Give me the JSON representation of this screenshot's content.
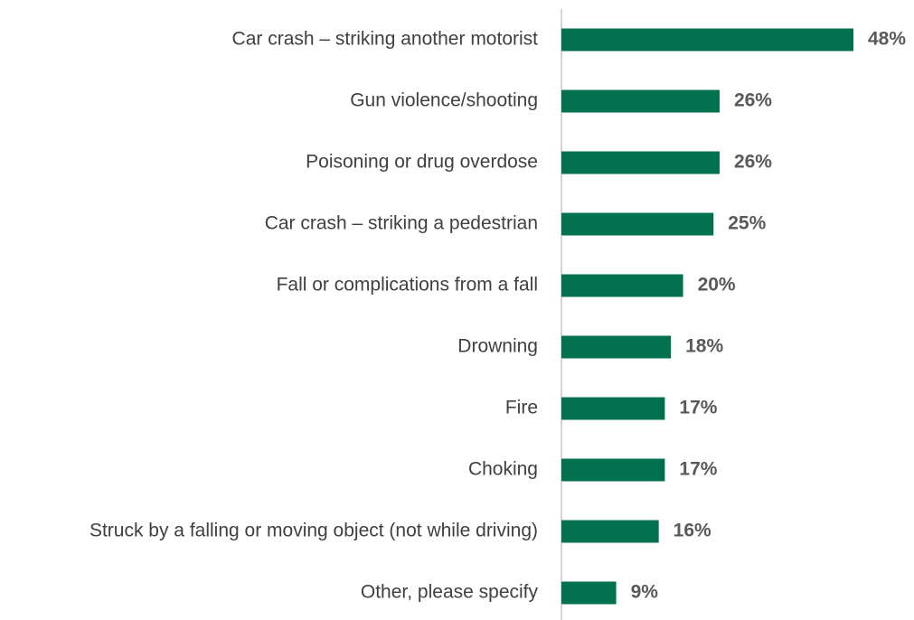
{
  "chart_data": {
    "type": "barh",
    "categories": [
      "Car crash – striking another motorist",
      "Gun violence/shooting",
      "Poisoning or drug overdose",
      "Car crash – striking a pedestrian",
      "Fall or complications from a fall",
      "Drowning",
      "Fire",
      "Choking",
      "Struck by a falling or moving object (not while driving)",
      "Other, please specify"
    ],
    "values": [
      48,
      26,
      26,
      25,
      20,
      18,
      17,
      17,
      16,
      9
    ],
    "value_labels": [
      "48%",
      "26%",
      "26%",
      "25%",
      "20%",
      "18%",
      "17%",
      "17%",
      "16%",
      "9%"
    ],
    "color": "#00704f"
  }
}
